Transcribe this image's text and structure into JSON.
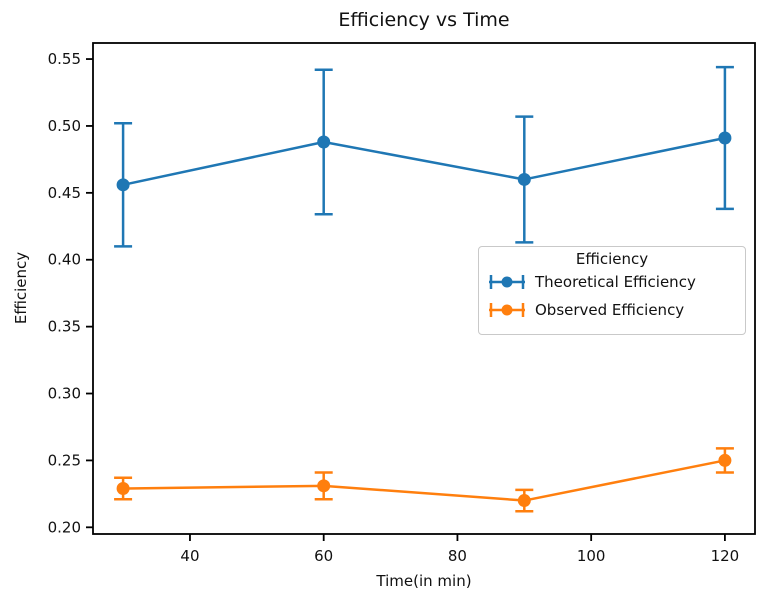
{
  "chart_data": {
    "type": "line",
    "title": "Efficiency vs Time",
    "xlabel": "Time(in min)",
    "ylabel": "Efficiency",
    "x": [
      30,
      60,
      90,
      120
    ],
    "series": [
      {
        "name": "Theoretical Efficiency",
        "color": "#1f77b4",
        "values": [
          0.456,
          0.488,
          0.46,
          0.491
        ],
        "errors": [
          0.046,
          0.054,
          0.047,
          0.053
        ]
      },
      {
        "name": "Observed Efficiency",
        "color": "#ff7f0e",
        "values": [
          0.229,
          0.231,
          0.22,
          0.25
        ],
        "errors": [
          0.008,
          0.01,
          0.008,
          0.009
        ]
      }
    ],
    "xlim": [
      25.5,
      124.5
    ],
    "ylim": [
      0.195,
      0.562
    ],
    "xticks": [
      40,
      60,
      80,
      100,
      120
    ],
    "xtick_labels": [
      "40",
      "60",
      "80",
      "100",
      "120"
    ],
    "yticks": [
      0.2,
      0.25,
      0.3,
      0.35,
      0.4,
      0.45,
      0.5,
      0.55
    ],
    "ytick_labels": [
      "0.20",
      "0.25",
      "0.30",
      "0.35",
      "0.40",
      "0.45",
      "0.50",
      "0.55"
    ],
    "legend": {
      "title": "Efficiency",
      "entries": [
        "Theoretical Efficiency",
        "Observed Efficiency"
      ],
      "position": "center-right"
    },
    "grid": false,
    "marker": "circle",
    "error_caps": true
  },
  "colors": {
    "axis": "#000000",
    "text": "#111111",
    "background": "#ffffff",
    "legend_border": "#c9c9c9"
  }
}
